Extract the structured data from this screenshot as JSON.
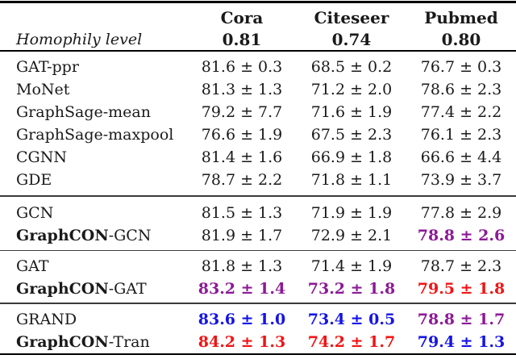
{
  "palette": {
    "black": "#1A1A1A",
    "red": "#F01414",
    "blue": "#1414E6",
    "purple": "#8C1A96"
  },
  "header": {
    "row_label": "Homophily level",
    "columns": [
      {
        "name": "Cora",
        "homophily": "0.81"
      },
      {
        "name": "Citeseer",
        "homophily": "0.74"
      },
      {
        "name": "Pubmed",
        "homophily": "0.80"
      }
    ]
  },
  "groups": [
    {
      "rows": [
        {
          "label": "GAT-ppr",
          "cells": [
            {
              "text": "81.6 ± 0.3",
              "color": "black",
              "bold": false
            },
            {
              "text": "68.5 ± 0.2",
              "color": "black",
              "bold": false
            },
            {
              "text": "76.7 ± 0.3",
              "color": "black",
              "bold": false
            }
          ]
        },
        {
          "label": "MoNet",
          "cells": [
            {
              "text": "81.3 ± 1.3",
              "color": "black",
              "bold": false
            },
            {
              "text": "71.2 ± 2.0",
              "color": "black",
              "bold": false
            },
            {
              "text": "78.6 ± 2.3",
              "color": "black",
              "bold": false
            }
          ]
        },
        {
          "label": "GraphSage-mean",
          "cells": [
            {
              "text": "79.2 ± 7.7",
              "color": "black",
              "bold": false
            },
            {
              "text": "71.6 ± 1.9",
              "color": "black",
              "bold": false
            },
            {
              "text": "77.4 ± 2.2",
              "color": "black",
              "bold": false
            }
          ]
        },
        {
          "label": "GraphSage-maxpool",
          "cells": [
            {
              "text": "76.6 ± 1.9",
              "color": "black",
              "bold": false
            },
            {
              "text": "67.5 ± 2.3",
              "color": "black",
              "bold": false
            },
            {
              "text": "76.1 ± 2.3",
              "color": "black",
              "bold": false
            }
          ]
        },
        {
          "label": "CGNN",
          "cells": [
            {
              "text": "81.4 ± 1.6",
              "color": "black",
              "bold": false
            },
            {
              "text": "66.9 ± 1.8",
              "color": "black",
              "bold": false
            },
            {
              "text": "66.6 ± 4.4",
              "color": "black",
              "bold": false
            }
          ]
        },
        {
          "label": "GDE",
          "cells": [
            {
              "text": "78.7 ± 2.2",
              "color": "black",
              "bold": false
            },
            {
              "text": "71.8 ± 1.1",
              "color": "black",
              "bold": false
            },
            {
              "text": "73.9 ± 3.7",
              "color": "black",
              "bold": false
            }
          ]
        }
      ]
    },
    {
      "rows": [
        {
          "label": "GCN",
          "cells": [
            {
              "text": "81.5 ± 1.3",
              "color": "black",
              "bold": false
            },
            {
              "text": "71.9 ± 1.9",
              "color": "black",
              "bold": false
            },
            {
              "text": "77.8 ± 2.9",
              "color": "black",
              "bold": false
            }
          ]
        },
        {
          "label_bold": "GraphCON",
          "label_rest": "-GCN",
          "cells": [
            {
              "text": "81.9 ± 1.7",
              "color": "black",
              "bold": false
            },
            {
              "text": "72.9 ± 2.1",
              "color": "black",
              "bold": false
            },
            {
              "text": "78.8 ± 2.6",
              "color": "purple",
              "bold": true
            }
          ]
        }
      ]
    },
    {
      "rows": [
        {
          "label": "GAT",
          "cells": [
            {
              "text": "81.8 ± 1.3",
              "color": "black",
              "bold": false
            },
            {
              "text": "71.4 ± 1.9",
              "color": "black",
              "bold": false
            },
            {
              "text": "78.7 ± 2.3",
              "color": "black",
              "bold": false
            }
          ]
        },
        {
          "label_bold": "GraphCON",
          "label_rest": "-GAT",
          "cells": [
            {
              "text": "83.2 ± 1.4",
              "color": "purple",
              "bold": true
            },
            {
              "text": "73.2 ± 1.8",
              "color": "purple",
              "bold": true
            },
            {
              "text": "79.5 ± 1.8",
              "color": "red",
              "bold": true
            }
          ]
        }
      ]
    },
    {
      "rows": [
        {
          "label": "GRAND",
          "cells": [
            {
              "text": "83.6 ± 1.0",
              "color": "blue",
              "bold": true
            },
            {
              "text": "73.4 ± 0.5",
              "color": "blue",
              "bold": true
            },
            {
              "text": "78.8 ± 1.7",
              "color": "purple",
              "bold": true
            }
          ]
        },
        {
          "label_bold": "GraphCON",
          "label_rest": "-Tran",
          "cells": [
            {
              "text": "84.2 ± 1.3",
              "color": "red",
              "bold": true
            },
            {
              "text": "74.2 ± 1.7",
              "color": "red",
              "bold": true
            },
            {
              "text": "79.4 ± 1.3",
              "color": "blue",
              "bold": true
            }
          ]
        }
      ]
    }
  ]
}
